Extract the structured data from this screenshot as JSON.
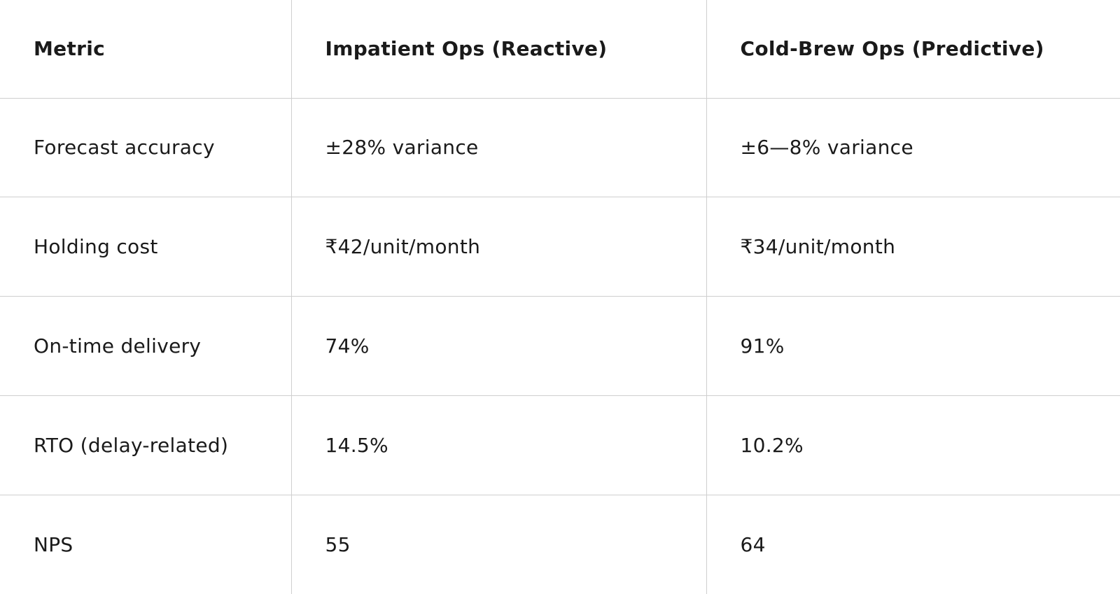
{
  "table": {
    "header": [
      "Metric",
      "Impatient Ops (Reactive)",
      "Cold-Brew Ops (Predictive)"
    ],
    "rows": [
      [
        "Forecast accuracy",
        "±28% variance",
        "±6—8% variance"
      ],
      [
        "Holding cost",
        "₹42/unit/month",
        "₹34/unit/month"
      ],
      [
        "On-time delivery",
        "74%",
        "91%"
      ],
      [
        "RTO (delay-related)",
        "14.5%",
        "10.2%"
      ],
      [
        "NPS",
        "55",
        "64"
      ]
    ]
  }
}
